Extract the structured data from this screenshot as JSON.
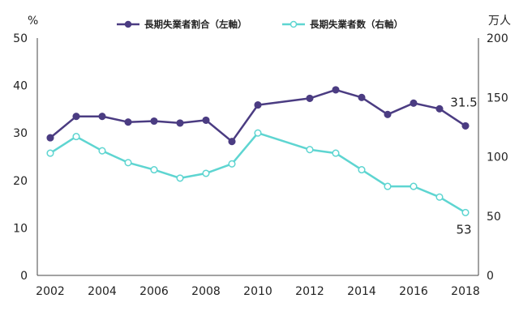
{
  "chart_data": {
    "type": "line",
    "x": [
      2002,
      2003,
      2004,
      2005,
      2006,
      2007,
      2008,
      2009,
      2010,
      2012,
      2013,
      2014,
      2015,
      2016,
      2017,
      2018
    ],
    "x_tick_labels": [
      "2002",
      "2004",
      "2006",
      "2008",
      "2010",
      "2012",
      "2014",
      "2016",
      "2018"
    ],
    "y_left": {
      "unit": "%",
      "lim": [
        0,
        50
      ],
      "ticks": [
        "0",
        "10",
        "20",
        "30",
        "40",
        "50"
      ]
    },
    "y_right": {
      "unit": "万人",
      "lim": [
        0,
        200
      ],
      "ticks": [
        "0",
        "50",
        "100",
        "150",
        "200"
      ]
    },
    "grid": false,
    "legend_position": "top-center",
    "series": [
      {
        "name": "長期失業者割合（左軸）",
        "axis": "left",
        "color": "#4b3c82",
        "marker": "filled",
        "values": [
          29.0,
          33.5,
          33.5,
          32.3,
          32.5,
          32.1,
          32.7,
          28.2,
          35.9,
          37.3,
          39.1,
          37.5,
          33.9,
          36.3,
          35.1,
          31.5
        ],
        "end_label": "31.5"
      },
      {
        "name": "長期失業者数（右軸）",
        "axis": "right",
        "color": "#5ed5d1",
        "marker": "hollow",
        "values": [
          103,
          117,
          105,
          95,
          89,
          82,
          86,
          94,
          120,
          106,
          103,
          89,
          75,
          75,
          66,
          53
        ],
        "end_label": "53"
      }
    ]
  }
}
